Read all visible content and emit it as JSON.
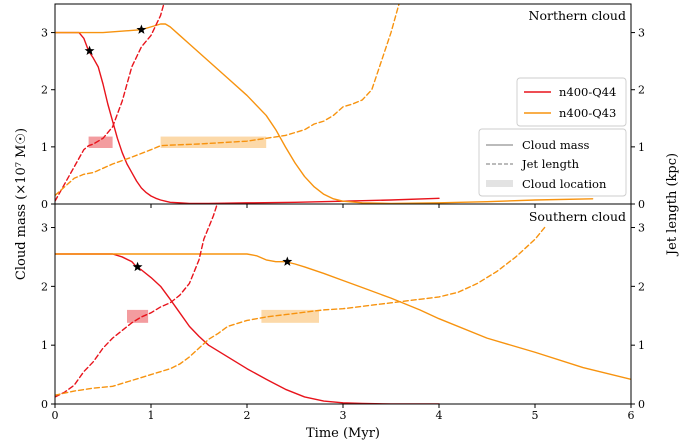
{
  "chart_data": {
    "type": "line",
    "xlabel": "Time (Myr)",
    "ylabel_left": "Cloud mass (×10⁷ M☉)",
    "ylabel_right": "Jet length (kpc)",
    "xlim": [
      0,
      6
    ],
    "xticks": [
      0,
      1,
      2,
      3,
      4,
      5,
      6
    ],
    "colors": {
      "Q44": "#e8141c",
      "Q43": "#f7930f",
      "Q44_band": "#f39c9f",
      "Q43_band": "#fcd9a9",
      "legend_grey": "#777777"
    },
    "legend_series": [
      {
        "key": "Q44",
        "label": "n400-Q44"
      },
      {
        "key": "Q43",
        "label": "n400-Q43"
      }
    ],
    "legend_styles": [
      {
        "style": "solid",
        "label": "Cloud mass"
      },
      {
        "style": "dashed",
        "label": "Jet length"
      },
      {
        "style": "band",
        "label": "Cloud location"
      }
    ],
    "panels": [
      {
        "title": "Northern cloud",
        "ylim_mass": [
          0,
          3.5
        ],
        "ylim_jet": [
          0,
          3.5
        ],
        "yticks": [
          0,
          1,
          2,
          3
        ],
        "series": [
          {
            "key": "Q44",
            "kind": "mass",
            "x": [
              0,
              0.25,
              0.3,
              0.35,
              0.4,
              0.45,
              0.5,
              0.55,
              0.6,
              0.65,
              0.7,
              0.75,
              0.8,
              0.85,
              0.9,
              0.95,
              1.0,
              1.05,
              1.1,
              1.15,
              1.2,
              1.3,
              1.4,
              1.6,
              2.0,
              2.5,
              3.0,
              3.5,
              4.0
            ],
            "y": [
              3.0,
              3.0,
              2.9,
              2.68,
              2.55,
              2.4,
              2.1,
              1.75,
              1.45,
              1.15,
              0.9,
              0.7,
              0.55,
              0.4,
              0.28,
              0.2,
              0.14,
              0.1,
              0.07,
              0.05,
              0.03,
              0.02,
              0.01,
              0.01,
              0.02,
              0.03,
              0.05,
              0.07,
              0.1
            ]
          },
          {
            "key": "Q43",
            "kind": "mass",
            "x": [
              0,
              0.5,
              0.9,
              1.0,
              1.1,
              1.15,
              1.2,
              1.3,
              1.4,
              1.6,
              1.8,
              2.0,
              2.2,
              2.3,
              2.4,
              2.5,
              2.6,
              2.7,
              2.8,
              2.9,
              3.0,
              3.2,
              3.5,
              4.0,
              4.5,
              5.0,
              5.6
            ],
            "y": [
              3.0,
              3.0,
              3.05,
              3.1,
              3.15,
              3.15,
              3.1,
              2.95,
              2.8,
              2.5,
              2.2,
              1.9,
              1.55,
              1.3,
              1.0,
              0.72,
              0.48,
              0.3,
              0.17,
              0.09,
              0.05,
              0.02,
              0.01,
              0.02,
              0.04,
              0.07,
              0.09
            ]
          },
          {
            "key": "Q44",
            "kind": "jet",
            "x": [
              0,
              0.1,
              0.2,
              0.3,
              0.35,
              0.4,
              0.5,
              0.6,
              0.7,
              0.8,
              0.9,
              1.0,
              1.1,
              1.15
            ],
            "y": [
              0.05,
              0.35,
              0.65,
              0.95,
              1.02,
              1.05,
              1.15,
              1.35,
              1.8,
              2.4,
              2.75,
              2.95,
              3.3,
              3.6
            ]
          },
          {
            "key": "Q43",
            "kind": "jet",
            "x": [
              0,
              0.2,
              0.3,
              0.4,
              0.6,
              0.8,
              1.0,
              1.1,
              1.2,
              1.5,
              2.0,
              2.2,
              2.4,
              2.6,
              2.7,
              2.8,
              2.9,
              3.0,
              3.1,
              3.2,
              3.3,
              3.4,
              3.5,
              3.6
            ],
            "y": [
              0.15,
              0.45,
              0.52,
              0.55,
              0.7,
              0.82,
              0.95,
              1.02,
              1.03,
              1.05,
              1.1,
              1.15,
              1.2,
              1.3,
              1.4,
              1.45,
              1.55,
              1.7,
              1.75,
              1.82,
              2.0,
              2.5,
              3.0,
              3.6
            ]
          }
        ],
        "stars": [
          {
            "key": "Q44",
            "x": 0.36,
            "y": 2.68
          },
          {
            "key": "Q43",
            "x": 0.9,
            "y": 3.05
          }
        ],
        "bands": [
          {
            "key": "Q44",
            "x0": 0.35,
            "x1": 0.6,
            "y0": 0.98,
            "y1": 1.18
          },
          {
            "key": "Q43",
            "x0": 1.1,
            "x1": 2.2,
            "y0": 0.98,
            "y1": 1.18
          }
        ]
      },
      {
        "title": "Southern cloud",
        "ylim_mass": [
          0,
          3.4
        ],
        "ylim_jet": [
          0,
          3.4
        ],
        "yticks": [
          0,
          1,
          2,
          3
        ],
        "series": [
          {
            "key": "Q44",
            "kind": "mass",
            "x": [
              0,
              0.4,
              0.6,
              0.7,
              0.8,
              0.85,
              0.9,
              1.0,
              1.1,
              1.2,
              1.3,
              1.4,
              1.5,
              1.6,
              1.8,
              2.0,
              2.2,
              2.4,
              2.6,
              2.8,
              3.0,
              3.2,
              3.5,
              4.0
            ],
            "y": [
              2.55,
              2.55,
              2.55,
              2.5,
              2.42,
              2.33,
              2.28,
              2.15,
              2.0,
              1.78,
              1.55,
              1.32,
              1.15,
              1.0,
              0.8,
              0.6,
              0.42,
              0.25,
              0.12,
              0.05,
              0.02,
              0.01,
              0.0,
              0.0
            ]
          },
          {
            "key": "Q43",
            "kind": "mass",
            "x": [
              0,
              1.0,
              1.5,
              2.0,
              2.1,
              2.2,
              2.3,
              2.4,
              2.5,
              2.6,
              2.8,
              3.0,
              3.2,
              3.5,
              3.8,
              4.0,
              4.5,
              5.0,
              5.5,
              6.0
            ],
            "y": [
              2.55,
              2.55,
              2.55,
              2.55,
              2.52,
              2.45,
              2.42,
              2.42,
              2.38,
              2.33,
              2.22,
              2.1,
              1.98,
              1.8,
              1.6,
              1.45,
              1.12,
              0.88,
              0.62,
              0.42
            ]
          },
          {
            "key": "Q44",
            "kind": "jet",
            "x": [
              0,
              0.1,
              0.2,
              0.3,
              0.4,
              0.5,
              0.6,
              0.7,
              0.8,
              0.9,
              1.0,
              1.1,
              1.2,
              1.3,
              1.4,
              1.5,
              1.55,
              1.6,
              1.65,
              1.7
            ],
            "y": [
              0.12,
              0.2,
              0.32,
              0.55,
              0.72,
              0.95,
              1.12,
              1.25,
              1.38,
              1.48,
              1.55,
              1.65,
              1.72,
              1.85,
              2.05,
              2.45,
              2.8,
              3.0,
              3.2,
              3.45
            ]
          },
          {
            "key": "Q43",
            "kind": "jet",
            "x": [
              0,
              0.2,
              0.4,
              0.6,
              0.8,
              1.0,
              1.1,
              1.2,
              1.3,
              1.4,
              1.5,
              1.6,
              1.7,
              1.8,
              2.0,
              2.2,
              2.4,
              2.6,
              2.8,
              3.0,
              3.2,
              3.5,
              3.8,
              4.0,
              4.2,
              4.4,
              4.6,
              4.8,
              5.0,
              5.1
            ],
            "y": [
              0.15,
              0.22,
              0.27,
              0.3,
              0.4,
              0.5,
              0.55,
              0.6,
              0.68,
              0.8,
              0.95,
              1.1,
              1.2,
              1.32,
              1.42,
              1.48,
              1.52,
              1.56,
              1.6,
              1.62,
              1.66,
              1.72,
              1.78,
              1.82,
              1.9,
              2.05,
              2.25,
              2.5,
              2.8,
              3.0
            ]
          }
        ],
        "stars": [
          {
            "key": "Q44",
            "x": 0.86,
            "y": 2.33
          },
          {
            "key": "Q43",
            "x": 2.42,
            "y": 2.42
          }
        ],
        "bands": [
          {
            "key": "Q44",
            "x0": 0.75,
            "x1": 0.97,
            "y0": 1.38,
            "y1": 1.6
          },
          {
            "key": "Q43",
            "x0": 2.15,
            "x1": 2.75,
            "y0": 1.38,
            "y1": 1.6
          }
        ]
      }
    ]
  }
}
